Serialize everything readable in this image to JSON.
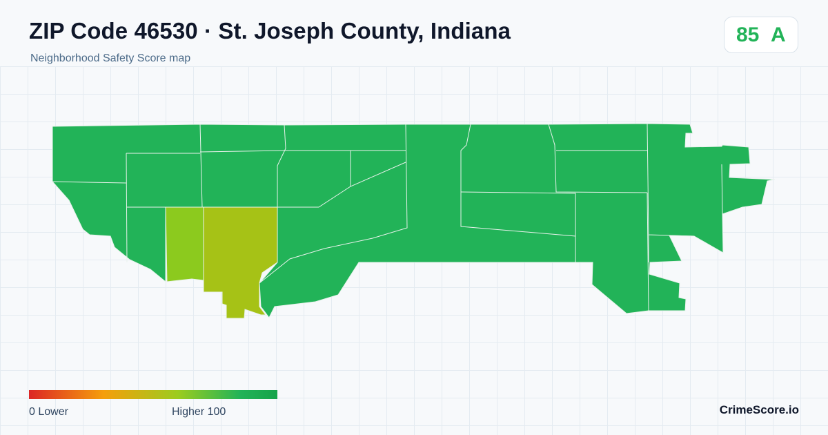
{
  "header": {
    "title": "ZIP Code 46530 · St. Joseph County, Indiana",
    "subtitle": "Neighborhood Safety Score map"
  },
  "score": {
    "value": "85",
    "grade": "A",
    "color": "#22b358"
  },
  "map": {
    "high_color": "#22b358",
    "mid_colors": [
      "#8cca1e",
      "#a6c216"
    ],
    "border_color": "#e9f2ec"
  },
  "legend": {
    "low_label": "0  Lower",
    "high_label": "Higher  100",
    "colors": [
      "#dc2626",
      "#f59e0b",
      "#9ccc1f",
      "#22b358"
    ]
  },
  "brand": "CrimeScore.io"
}
